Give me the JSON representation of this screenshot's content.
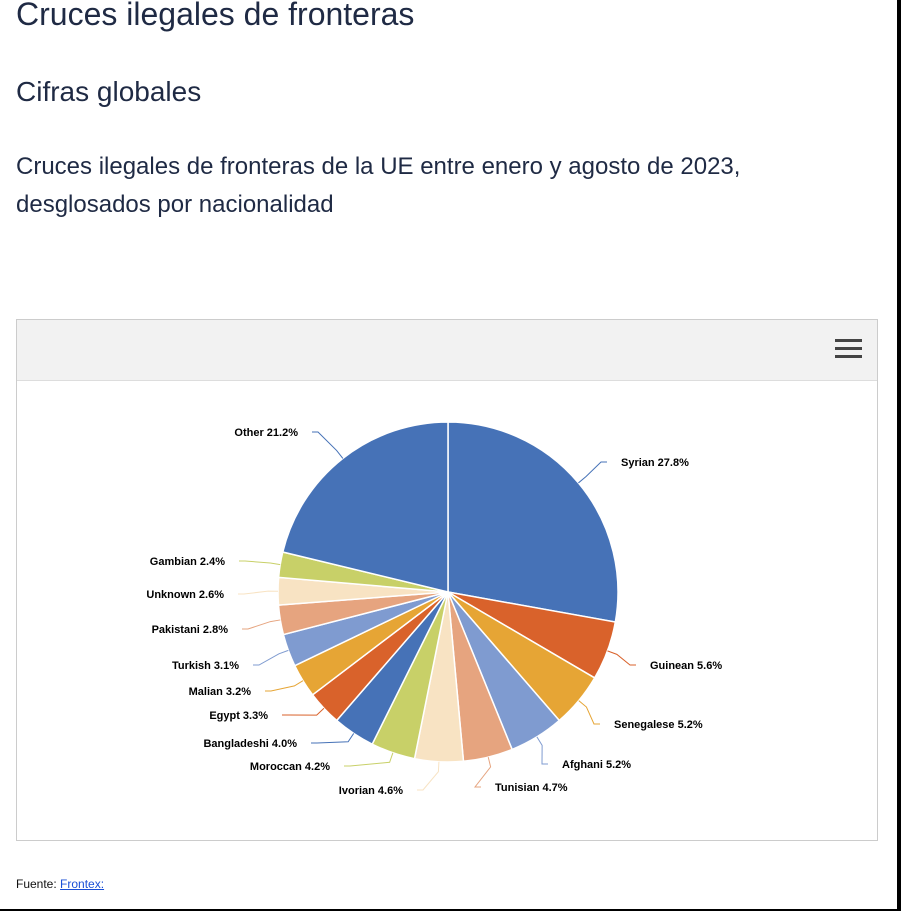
{
  "page": {
    "title": "Cruces ilegales de fronteras",
    "section_title": "Cifras globales",
    "chart_heading": "Cruces ilegales de fronteras de la UE entre enero y agosto de 2023, desglosados por nacionalidad"
  },
  "toolbar": {
    "menu_icon": "hamburger-menu-icon"
  },
  "source": {
    "label": "Fuente:",
    "link_text": "Frontex:"
  },
  "chart_data": {
    "type": "pie",
    "title": "",
    "label_format": "{name} {value}%",
    "slices": [
      {
        "name": "Syrian",
        "value": 27.8,
        "color": "#4672b7"
      },
      {
        "name": "Guinean",
        "value": 5.6,
        "color": "#d9622b"
      },
      {
        "name": "Senegalese",
        "value": 5.2,
        "color": "#e6a535"
      },
      {
        "name": "Afghani",
        "value": 5.2,
        "color": "#7f9bd0"
      },
      {
        "name": "Tunisian",
        "value": 4.7,
        "color": "#e6a47f"
      },
      {
        "name": "Ivorian",
        "value": 4.6,
        "color": "#f8e3c3"
      },
      {
        "name": "Moroccan",
        "value": 4.2,
        "color": "#c8d068"
      },
      {
        "name": "Bangladeshi",
        "value": 4.0,
        "color": "#4672b7"
      },
      {
        "name": "Egypt",
        "value": 3.3,
        "color": "#d9622b"
      },
      {
        "name": "Malian",
        "value": 3.2,
        "color": "#e6a535"
      },
      {
        "name": "Turkish",
        "value": 3.1,
        "color": "#7f9bd0"
      },
      {
        "name": "Pakistani",
        "value": 2.8,
        "color": "#e6a47f"
      },
      {
        "name": "Unknown",
        "value": 2.6,
        "color": "#f8e3c3"
      },
      {
        "name": "Gambian",
        "value": 2.4,
        "color": "#c8d068"
      },
      {
        "name": "Other",
        "value": 21.2,
        "color": "#4672b7"
      }
    ]
  }
}
